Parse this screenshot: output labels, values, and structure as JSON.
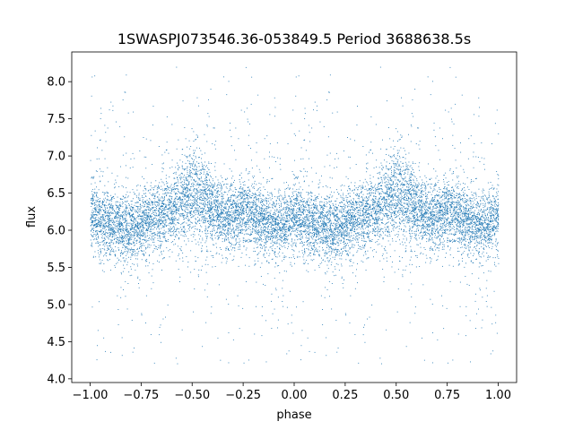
{
  "chart_data": {
    "type": "scatter",
    "title": "1SWASPJ073546.36-053849.5 Period 3688638.5s",
    "xlabel": "phase",
    "ylabel": "flux",
    "xlim": [
      -1.09,
      1.09
    ],
    "ylim": [
      3.95,
      8.4
    ],
    "xticks": [
      -1.0,
      -0.75,
      -0.5,
      -0.25,
      0.0,
      0.25,
      0.5,
      0.75,
      1.0
    ],
    "xtick_labels": [
      "−1.00",
      "−0.75",
      "−0.50",
      "−0.25",
      "0.00",
      "0.25",
      "0.50",
      "0.75",
      "1.00"
    ],
    "yticks": [
      4.0,
      4.5,
      5.0,
      5.5,
      6.0,
      6.5,
      7.0,
      7.5,
      8.0
    ],
    "ytick_labels": [
      "4.0",
      "4.5",
      "5.0",
      "5.5",
      "6.0",
      "6.5",
      "7.0",
      "7.5",
      "8.0"
    ],
    "grid": false,
    "marker_color": "#1f77b4",
    "series": [
      {
        "points_per_cycle_approx": 6000,
        "x": [
          -1.0,
          -0.95,
          -0.9,
          -0.85,
          -0.8,
          -0.75,
          -0.7,
          -0.65,
          -0.6,
          -0.55,
          -0.5,
          -0.45,
          -0.4,
          -0.35,
          -0.3,
          -0.25,
          -0.2,
          -0.15,
          -0.1,
          -0.05,
          0.0,
          0.05,
          0.1,
          0.15,
          0.2,
          0.25,
          0.3,
          0.35,
          0.4,
          0.45,
          0.5,
          0.55,
          0.6,
          0.65,
          0.7,
          0.75,
          0.8,
          0.85,
          0.9,
          0.95,
          1.0
        ],
        "y_median": [
          6.2,
          6.15,
          6.1,
          6.05,
          6.05,
          6.1,
          6.15,
          6.2,
          6.3,
          6.4,
          6.5,
          6.45,
          6.3,
          6.2,
          6.2,
          6.25,
          6.2,
          6.15,
          6.1,
          6.1,
          6.2,
          6.15,
          6.1,
          6.05,
          6.05,
          6.1,
          6.15,
          6.2,
          6.3,
          6.4,
          6.5,
          6.45,
          6.3,
          6.2,
          6.2,
          6.25,
          6.2,
          6.15,
          6.1,
          6.1,
          6.2
        ]
      }
    ]
  }
}
